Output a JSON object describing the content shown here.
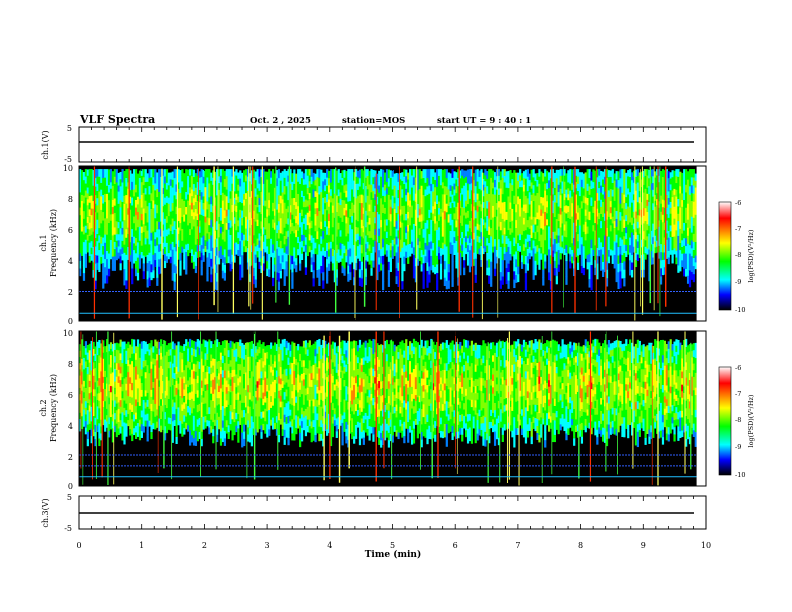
{
  "header": {
    "title": "VLF Spectra",
    "date": "Oct. 2 , 2025",
    "station": "station=MOS",
    "start": "start UT =  9 : 40 : 1"
  },
  "colorbar": {
    "label": "log(PSD)(V²/Hz)",
    "ticks": [
      "-6",
      "-7",
      "-8",
      "-9",
      "-10"
    ],
    "colors": [
      "#ffffff",
      "#ff0000",
      "#ffff00",
      "#00ff00",
      "#00ffff",
      "#0000ff",
      "#000000"
    ]
  },
  "chart_data": [
    {
      "type": "line",
      "name": "ch1-voltage",
      "ylabel": "ch.1(V)",
      "ylim": [
        -5,
        5
      ],
      "yticks": [
        "5",
        "-5"
      ],
      "x": [
        0,
        9.85
      ],
      "values": [
        0,
        0
      ],
      "xlim": [
        0,
        10
      ]
    },
    {
      "type": "heatmap",
      "name": "ch1-spectrogram",
      "ylabel": "ch.1\nFrequency (kHz)",
      "ylabel_lines": [
        "ch.1",
        "Frequency (kHz)"
      ],
      "ylim": [
        0,
        10
      ],
      "yticks": [
        "10",
        "8",
        "6",
        "4",
        "2",
        "0"
      ],
      "xlim": [
        0,
        10
      ],
      "data_end_min": 9.85,
      "dominant_band_khz": [
        4.5,
        9.5
      ],
      "peak_log_psd": -6.5,
      "background_log_psd": -10,
      "constant_lines_khz": [
        0.5,
        1.9
      ]
    },
    {
      "type": "heatmap",
      "name": "ch2-spectrogram",
      "ylabel": "ch.2\nFrequency (kHz)",
      "ylabel_lines": [
        "ch.2",
        "Frequency (kHz)"
      ],
      "ylim": [
        0,
        10
      ],
      "yticks": [
        "10",
        "8",
        "6",
        "4",
        "2",
        "0"
      ],
      "xlim": [
        0,
        10
      ],
      "data_end_min": 9.85,
      "dominant_band_khz": [
        4,
        9
      ],
      "peak_log_psd": -6.3,
      "background_log_psd": -10,
      "constant_lines_khz": [
        0.6,
        1.3,
        2.0
      ]
    },
    {
      "type": "line",
      "name": "ch3-voltage",
      "ylabel": "ch.3(V)",
      "ylim": [
        -5,
        5
      ],
      "yticks": [
        "5",
        "-5"
      ],
      "x": [
        0,
        9.85
      ],
      "values": [
        0,
        0
      ],
      "xlim": [
        0,
        10
      ]
    }
  ],
  "xaxis": {
    "label": "Time (min)",
    "ticks": [
      "0",
      "1",
      "2",
      "3",
      "4",
      "5",
      "6",
      "7",
      "8",
      "9",
      "10"
    ],
    "range": [
      0,
      10
    ]
  }
}
